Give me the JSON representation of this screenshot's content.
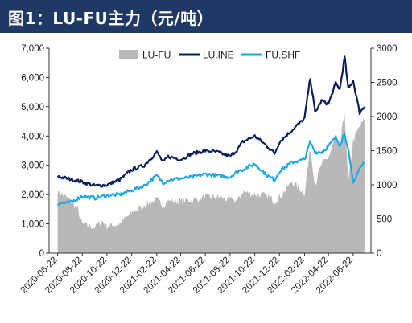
{
  "title": "图1：LU-FU主力（元/吨）",
  "chart_data": {
    "type": "line",
    "title": "图1：LU-FU主力（元/吨）",
    "x_labels": [
      "2020-06-22",
      "2020-08-22",
      "2020-10-22",
      "2020-12-22",
      "2021-02-22",
      "2021-04-22",
      "2021-06-22",
      "2021-08-22",
      "2021-10-22",
      "2021-12-22",
      "2022-02-22",
      "2022-04-22",
      "2022-06-22"
    ],
    "y_left": {
      "ticks": [
        0,
        1000,
        2000,
        3000,
        4000,
        5000,
        6000,
        7000
      ],
      "tick_labels": [
        "0",
        "1,000",
        "2,000",
        "3,000",
        "4,000",
        "5,000",
        "6,000",
        "7,000"
      ],
      "lim": [
        0,
        7000
      ]
    },
    "y_right": {
      "ticks": [
        0,
        500,
        1000,
        1500,
        2000,
        2500,
        3000
      ],
      "tick_labels": [
        "0",
        "500",
        "1000",
        "1500",
        "2000",
        "2500",
        "3000"
      ],
      "lim": [
        0,
        3000
      ]
    },
    "legend_position": "top",
    "grid": false,
    "series": [
      {
        "name": "LU-FU",
        "type": "area",
        "axis": "right",
        "color": "#b8b8b8",
        "x": [
          "2020-06-22",
          "2020-07-22",
          "2020-08-10",
          "2020-08-22",
          "2020-09-22",
          "2020-10-10",
          "2020-10-22",
          "2020-11-22",
          "2020-12-22",
          "2021-01-22",
          "2021-02-22",
          "2021-03-10",
          "2021-03-22",
          "2021-04-22",
          "2021-05-22",
          "2021-06-22",
          "2021-07-22",
          "2021-08-22",
          "2021-09-10",
          "2021-09-22",
          "2021-10-22",
          "2021-11-22",
          "2021-12-10",
          "2021-12-22",
          "2022-01-22",
          "2022-02-22",
          "2022-03-08",
          "2022-03-20",
          "2022-04-05",
          "2022-04-22",
          "2022-05-10",
          "2022-05-20",
          "2022-06-01",
          "2022-06-10",
          "2022-06-22",
          "2022-07-08",
          "2022-07-20"
        ],
        "values": [
          900,
          780,
          650,
          420,
          380,
          470,
          390,
          430,
          590,
          700,
          780,
          700,
          760,
          760,
          780,
          820,
          820,
          780,
          770,
          900,
          860,
          840,
          760,
          820,
          1050,
          880,
          1530,
          1000,
          1300,
          1400,
          1700,
          1550,
          2080,
          1000,
          1650,
          1850,
          1950
        ]
      },
      {
        "name": "LU.INE",
        "type": "line",
        "axis": "left",
        "color": "#0b1f5c",
        "x": [
          "2020-06-22",
          "2020-07-22",
          "2020-08-22",
          "2020-09-22",
          "2020-10-22",
          "2020-11-22",
          "2020-12-22",
          "2021-01-22",
          "2021-02-22",
          "2021-03-10",
          "2021-03-22",
          "2021-04-22",
          "2021-05-22",
          "2021-06-22",
          "2021-07-22",
          "2021-08-22",
          "2021-09-10",
          "2021-09-22",
          "2021-10-22",
          "2021-11-22",
          "2021-12-10",
          "2021-12-22",
          "2022-01-22",
          "2022-02-22",
          "2022-03-08",
          "2022-03-20",
          "2022-04-05",
          "2022-04-22",
          "2022-05-10",
          "2022-05-20",
          "2022-06-01",
          "2022-06-10",
          "2022-06-22",
          "2022-07-08",
          "2022-07-20"
        ],
        "values": [
          2620,
          2530,
          2430,
          2300,
          2330,
          2500,
          2850,
          3000,
          3450,
          3100,
          3300,
          3200,
          3400,
          3500,
          3450,
          3300,
          3550,
          3800,
          4000,
          3650,
          3400,
          3800,
          4200,
          4600,
          6000,
          4800,
          5200,
          5100,
          5800,
          5600,
          6700,
          5600,
          5900,
          4800,
          5000
        ]
      },
      {
        "name": "FU.SHF",
        "type": "line",
        "axis": "left",
        "color": "#1ea8e6",
        "x": [
          "2020-06-22",
          "2020-07-22",
          "2020-08-22",
          "2020-09-22",
          "2020-10-22",
          "2020-11-22",
          "2020-12-22",
          "2021-01-22",
          "2021-02-22",
          "2021-03-10",
          "2021-03-22",
          "2021-04-22",
          "2021-05-22",
          "2021-06-22",
          "2021-07-22",
          "2021-08-22",
          "2021-09-10",
          "2021-09-22",
          "2021-10-22",
          "2021-11-22",
          "2021-12-10",
          "2021-12-22",
          "2022-01-22",
          "2022-02-22",
          "2022-03-08",
          "2022-03-20",
          "2022-04-05",
          "2022-04-22",
          "2022-05-10",
          "2022-05-20",
          "2022-06-01",
          "2022-06-10",
          "2022-06-22",
          "2022-07-08",
          "2022-07-20"
        ],
        "values": [
          1700,
          1720,
          1950,
          1880,
          1970,
          2000,
          2150,
          2300,
          2650,
          2400,
          2500,
          2550,
          2600,
          2700,
          2650,
          2600,
          2800,
          2850,
          3050,
          2650,
          2500,
          2800,
          3100,
          3200,
          3800,
          3450,
          3450,
          3650,
          3950,
          3700,
          4100,
          3500,
          2400,
          2900,
          3100
        ]
      }
    ]
  }
}
